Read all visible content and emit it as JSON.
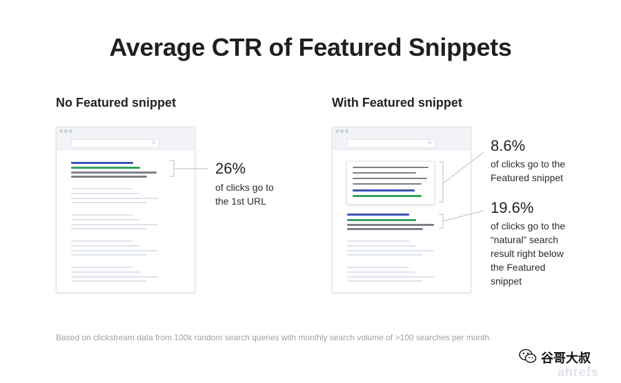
{
  "title": "Average CTR of Featured Snippets",
  "left_panel": {
    "heading": "No Featured snippet",
    "stat": {
      "value": "26%",
      "description": "of clicks go to the 1st URL",
      "lines": [
        "of clicks go to",
        "the 1st URL"
      ]
    }
  },
  "right_panel": {
    "heading": "With Featured snippet",
    "stat_snippet": {
      "value": "8.6%",
      "lines": [
        "of clicks go to the",
        "Featured snippet"
      ]
    },
    "stat_natural": {
      "value": "19.6%",
      "lines": [
        "of clicks go to the",
        "“natural” search",
        "result right below",
        "the Featured",
        "snippet"
      ]
    }
  },
  "footnote": "Based on clickstream data from 100k random search queries with monthly search volume of >100 searches per month.",
  "watermark": {
    "text": "谷哥大叔",
    "brand": "ahrefs",
    "icon": "wechat-icon"
  },
  "colors": {
    "result_blue": "#3d4fb5",
    "result_green": "#35a05a",
    "result_gray": "#7c7f85",
    "connector": "#b9bec7"
  }
}
